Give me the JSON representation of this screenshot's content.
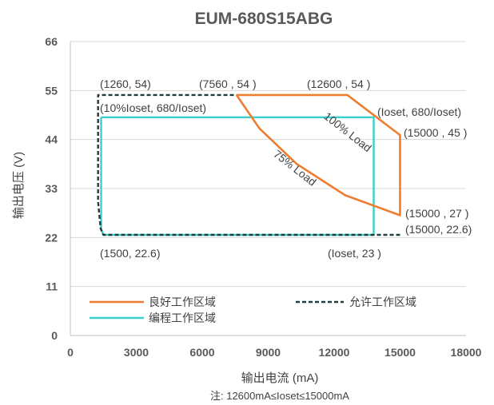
{
  "chart_data": {
    "type": "line",
    "title": "EUM-680S15ABG",
    "xlabel": "输出电流 (mA)",
    "ylabel": "输出电压 (V)",
    "note": "注: 12600mA≤Ioset≤15000mA",
    "xlim": [
      0,
      18000
    ],
    "ylim": [
      0,
      66
    ],
    "x_ticks": [
      "0",
      "3000",
      "6000",
      "9000",
      "12000",
      "15000",
      "18000"
    ],
    "x_tick_values": [
      0,
      3000,
      6000,
      9000,
      12000,
      15000,
      18000
    ],
    "y_ticks": [
      "0",
      "11",
      "22",
      "33",
      "44",
      "55",
      "66"
    ],
    "y_tick_values": [
      0,
      11,
      22,
      33,
      44,
      55,
      66
    ],
    "grid": "horizontal",
    "legend_position": "bottom-left",
    "series": [
      {
        "name": "良好工作区域",
        "color": "#ED7D31",
        "style": "solid",
        "points": [
          [
            7560,
            54
          ],
          [
            12600,
            54
          ],
          [
            15000,
            45
          ],
          [
            15000,
            27
          ],
          [
            12500,
            31.5
          ],
          [
            10300,
            38.5
          ],
          [
            8600,
            46.5
          ],
          [
            7560,
            54
          ]
        ]
      },
      {
        "name": "允许工作区域",
        "color": "#1F3D3D",
        "style": "dashed",
        "points": [
          [
            15000,
            22.6
          ],
          [
            1500,
            22.6
          ],
          [
            1380,
            24
          ],
          [
            1260,
            30
          ],
          [
            1260,
            54
          ],
          [
            7560,
            54
          ]
        ]
      },
      {
        "name": "编程工作区域",
        "color": "#3CCFCF",
        "style": "solid",
        "points": [
          [
            1400,
            49
          ],
          [
            13800,
            49
          ],
          [
            13800,
            22.6
          ],
          [
            1500,
            22.6
          ],
          [
            1400,
            24
          ],
          [
            1400,
            49
          ]
        ]
      }
    ],
    "curve_labels": [
      {
        "text": "100% Load",
        "color": "#404040"
      },
      {
        "text": "75% Load",
        "color": "#404040"
      }
    ],
    "annotations": [
      "(1260, 54)",
      "(7560 , 54 )",
      "(12600 , 54 )",
      "(10%Ioset, 680/Ioset)",
      "(Ioset, 680/Ioset)",
      "(15000 , 45 )",
      "(15000 , 27 )",
      "(15000, 22.6)",
      "(1500, 22.6)",
      "(Ioset, 23 )"
    ]
  }
}
